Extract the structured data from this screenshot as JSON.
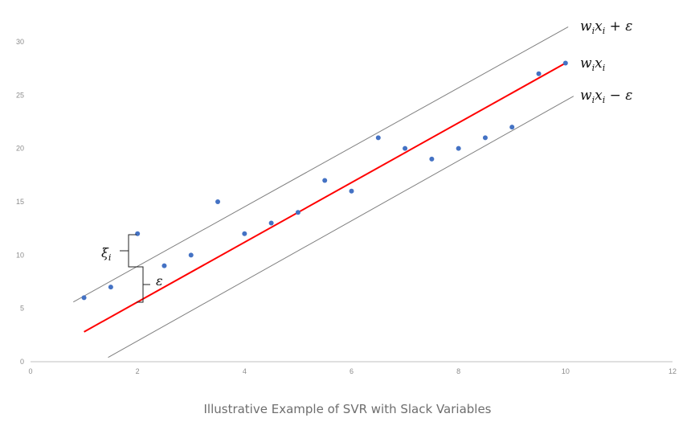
{
  "caption": "Illustrative Example of SVR with Slack Variables",
  "colors": {
    "points": "#4472c4",
    "fit_line": "#ff0000",
    "margin_lines": "#7f7f7f",
    "axis": "#bfbfbf",
    "tick_text": "#8c8c8c"
  },
  "chart_data": {
    "type": "scatter",
    "title": "",
    "xlabel": "",
    "ylabel": "",
    "xlim": [
      0,
      12
    ],
    "ylim": [
      0,
      30
    ],
    "x_ticks": [
      "0",
      "2",
      "4",
      "6",
      "8",
      "10",
      "12"
    ],
    "y_ticks": [
      "0",
      "5",
      "10",
      "15",
      "20",
      "25",
      "30"
    ],
    "grid": false,
    "points": [
      {
        "x": 1,
        "y": 6
      },
      {
        "x": 1.5,
        "y": 7
      },
      {
        "x": 2,
        "y": 12
      },
      {
        "x": 2.5,
        "y": 9
      },
      {
        "x": 3,
        "y": 10
      },
      {
        "x": 3.5,
        "y": 15
      },
      {
        "x": 4,
        "y": 12
      },
      {
        "x": 4.5,
        "y": 13
      },
      {
        "x": 5,
        "y": 14
      },
      {
        "x": 5.5,
        "y": 17
      },
      {
        "x": 6,
        "y": 16
      },
      {
        "x": 6.5,
        "y": 21
      },
      {
        "x": 7,
        "y": 20
      },
      {
        "x": 7.5,
        "y": 19
      },
      {
        "x": 8,
        "y": 20
      },
      {
        "x": 8.5,
        "y": 21
      },
      {
        "x": 9,
        "y": 22
      },
      {
        "x": 9.5,
        "y": 27
      },
      {
        "x": 10,
        "y": 28
      }
    ],
    "lines": [
      {
        "role": "fit",
        "x": [
          1,
          10
        ],
        "y": [
          2.8,
          28
        ]
      },
      {
        "role": "upper-margin",
        "x": [
          0.8,
          10.05
        ],
        "y": [
          5.6,
          31.4
        ]
      },
      {
        "role": "lower-margin",
        "x": [
          1.45,
          10.15
        ],
        "y": [
          0.4,
          24.9
        ]
      }
    ],
    "annotations": {
      "upper_label": "wixi + ε",
      "fit_label": "wixi",
      "lower_label": "wixi − ε",
      "xi_label": "ξi",
      "epsilon_label": "ε"
    }
  }
}
